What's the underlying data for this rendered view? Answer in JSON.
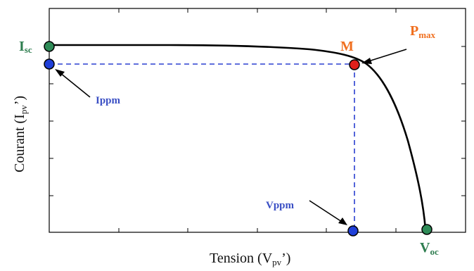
{
  "colors": {
    "curve": "#000000",
    "dashed": "#2a3fd0",
    "green_point": "#2e8b57",
    "red_point": "#e0201b",
    "blue_point": "#1f3fd8",
    "orange_label": "#f07020",
    "green_label": "#2e7d4f",
    "blue_label": "#3a4fc4"
  },
  "axes": {
    "xlabel_main": "Tension (V",
    "xlabel_sub": "pv",
    "xlabel_end": "’)",
    "ylabel_main": "Courant (I",
    "ylabel_sub": "pv",
    "ylabel_end": "’)"
  },
  "labels": {
    "isc_main": "I",
    "isc_sub": "sc",
    "voc_main": "V",
    "voc_sub": "oc",
    "m": "M",
    "pmax_main": "P",
    "pmax_sub": "max",
    "ippm": "Ippm",
    "vppm": "Vppm"
  }
}
